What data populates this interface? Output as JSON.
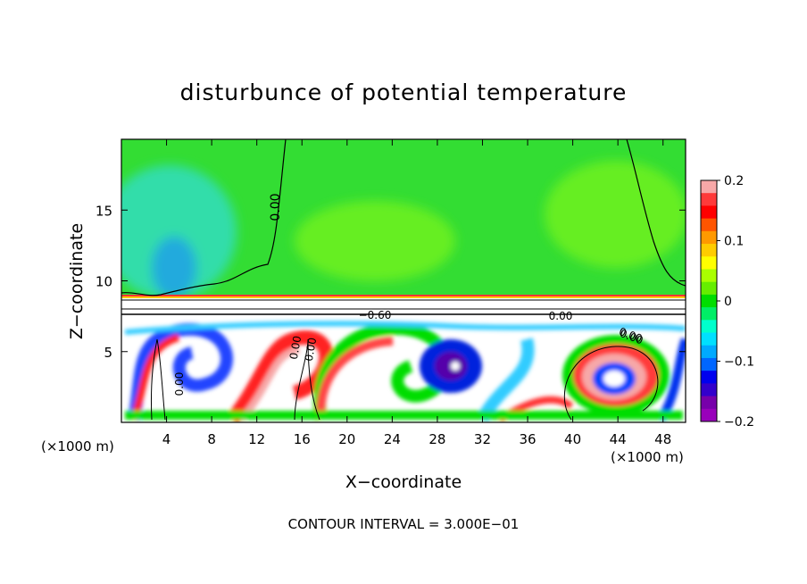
{
  "chart_data": {
    "type": "heatmap",
    "title": "disturbunce of potential temperature",
    "xlabel": "X−coordinate",
    "ylabel": "Z−coordinate",
    "x_unit_left": "(×1000 m)",
    "x_unit_right": "(×1000 m)",
    "footer": "CONTOUR INTERVAL = 3.000E−01",
    "xlim": [
      0,
      50
    ],
    "ylim": [
      0,
      20
    ],
    "x_ticks": [
      "4",
      "8",
      "12",
      "16",
      "20",
      "24",
      "28",
      "32",
      "36",
      "40",
      "44",
      "48"
    ],
    "y_ticks": [
      "5",
      "10",
      "15"
    ],
    "contour_labels": [
      "0.00",
      "0.00",
      "−0.60",
      "0.00",
      "0.00",
      "0.00",
      "0.00",
      "0.00"
    ],
    "colorbar": {
      "ticks": [
        "0.2",
        "0.1",
        "0",
        "−0.1",
        "−0.2"
      ],
      "range": [
        -0.2,
        0.2
      ],
      "colors": [
        "#f7a8a8",
        "#ff3a3a",
        "#ff0000",
        "#ff5500",
        "#ff9900",
        "#ffcc00",
        "#ffff00",
        "#aaff00",
        "#66ee00",
        "#00dd00",
        "#00ee66",
        "#00ffcc",
        "#00e0ff",
        "#00aaff",
        "#0066ff",
        "#0000ee",
        "#3300cc",
        "#7700aa",
        "#9900bb"
      ]
    },
    "grid": false,
    "legend": "right"
  },
  "colors": {
    "background_field": "#33dd33",
    "upper_left_cool": "#33ddaa",
    "upper_right_warm": "#66ee22"
  }
}
